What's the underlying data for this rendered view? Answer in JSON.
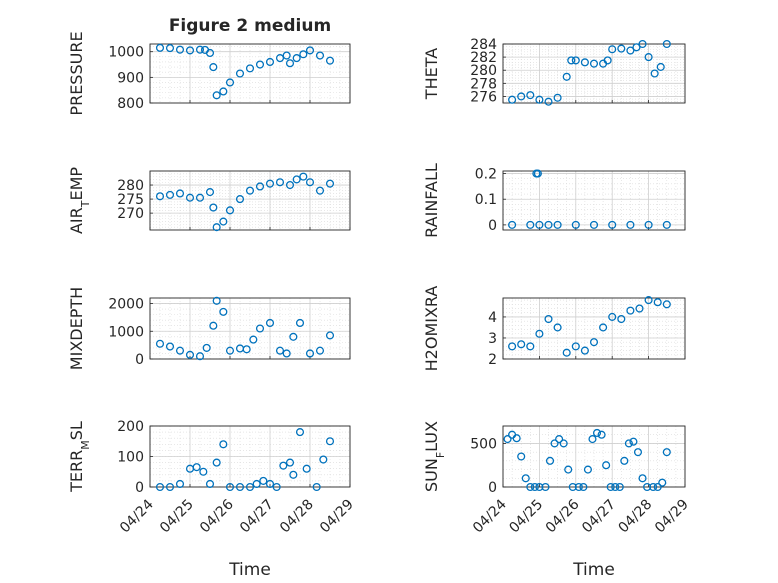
{
  "figure_title": "Figure 2 medium",
  "xlabel": "Time",
  "x_tick_labels": [
    "04/24",
    "04/25",
    "04/26",
    "04/27",
    "04/28",
    "04/29"
  ],
  "marker_color": "#0072BD",
  "chart_data": [
    {
      "type": "scatter",
      "id": "pressure",
      "title": "Figure 2 medium",
      "ylabel": "PRESSURE",
      "ylabel_sub": null,
      "ylabel_tail": null,
      "xlim": [
        "2023-04-24",
        "2023-04-29"
      ],
      "ylim": [
        800,
        1030
      ],
      "yticks": [
        800,
        900,
        1000
      ],
      "grid": true,
      "minor_grid": true,
      "x": [
        "2023-04-24T06:00",
        "2023-04-24T12:00",
        "2023-04-24T18:00",
        "2023-04-25T00:00",
        "2023-04-25T06:00",
        "2023-04-25T09:00",
        "2023-04-25T12:00",
        "2023-04-25T14:00",
        "2023-04-25T16:00",
        "2023-04-25T20:00",
        "2023-04-26T00:00",
        "2023-04-26T06:00",
        "2023-04-26T12:00",
        "2023-04-26T18:00",
        "2023-04-27T00:00",
        "2023-04-27T06:00",
        "2023-04-27T10:00",
        "2023-04-27T12:00",
        "2023-04-27T16:00",
        "2023-04-27T20:00",
        "2023-04-28T00:00",
        "2023-04-28T06:00",
        "2023-04-28T12:00"
      ],
      "values": [
        1015,
        1014,
        1008,
        1005,
        1008,
        1007,
        995,
        940,
        830,
        845,
        880,
        915,
        935,
        950,
        960,
        975,
        985,
        955,
        975,
        990,
        1005,
        985,
        965
      ]
    },
    {
      "type": "scatter",
      "id": "theta",
      "ylabel": "THETA",
      "ylabel_sub": null,
      "ylabel_tail": null,
      "xlim": [
        "2023-04-24",
        "2023-04-29"
      ],
      "ylim": [
        275,
        284
      ],
      "yticks": [
        276,
        278,
        280,
        282,
        284
      ],
      "grid": true,
      "minor_grid": true,
      "x": [
        "2023-04-24T06:00",
        "2023-04-24T12:00",
        "2023-04-24T18:00",
        "2023-04-25T00:00",
        "2023-04-25T06:00",
        "2023-04-25T12:00",
        "2023-04-25T18:00",
        "2023-04-25T21:00",
        "2023-04-26T00:00",
        "2023-04-26T06:00",
        "2023-04-26T12:00",
        "2023-04-26T18:00",
        "2023-04-26T21:00",
        "2023-04-27T00:00",
        "2023-04-27T06:00",
        "2023-04-27T12:00",
        "2023-04-27T16:00",
        "2023-04-27T20:00",
        "2023-04-28T00:00",
        "2023-04-28T04:00",
        "2023-04-28T08:00",
        "2023-04-28T12:00"
      ],
      "values": [
        275.5,
        276,
        276.2,
        275.5,
        275.2,
        275.8,
        279,
        281.5,
        281.5,
        281.2,
        281,
        281,
        281.5,
        283.2,
        283.3,
        283,
        283.5,
        284,
        282,
        279.5,
        280.5,
        284
      ]
    },
    {
      "type": "scatter",
      "id": "air_temp",
      "ylabel": "AIR",
      "ylabel_sub": "T",
      "ylabel_tail": "EMP",
      "xlim": [
        "2023-04-24",
        "2023-04-29"
      ],
      "ylim": [
        264,
        285
      ],
      "yticks": [
        270,
        275,
        280
      ],
      "grid": true,
      "minor_grid": true,
      "x": [
        "2023-04-24T06:00",
        "2023-04-24T12:00",
        "2023-04-24T18:00",
        "2023-04-25T00:00",
        "2023-04-25T06:00",
        "2023-04-25T12:00",
        "2023-04-25T14:00",
        "2023-04-25T16:00",
        "2023-04-25T20:00",
        "2023-04-26T00:00",
        "2023-04-26T06:00",
        "2023-04-26T12:00",
        "2023-04-26T18:00",
        "2023-04-27T00:00",
        "2023-04-27T06:00",
        "2023-04-27T12:00",
        "2023-04-27T16:00",
        "2023-04-27T20:00",
        "2023-04-28T00:00",
        "2023-04-28T06:00",
        "2023-04-28T12:00"
      ],
      "values": [
        276,
        276.5,
        277,
        275.5,
        275.5,
        277.5,
        272,
        265,
        267,
        271,
        275,
        278,
        279.5,
        280.5,
        281,
        280,
        282,
        283,
        281,
        278,
        280.5
      ]
    },
    {
      "type": "scatter",
      "id": "rainfall",
      "ylabel": "RAINFALL",
      "ylabel_sub": null,
      "ylabel_tail": null,
      "xlim": [
        "2023-04-24",
        "2023-04-29"
      ],
      "ylim": [
        -0.02,
        0.21
      ],
      "yticks": [
        0,
        0.1,
        0.2
      ],
      "grid": true,
      "minor_grid": true,
      "x": [
        "2023-04-24T06:00",
        "2023-04-24T18:00",
        "2023-04-25T00:00",
        "2023-04-25T06:00",
        "2023-04-25T12:00",
        "2023-04-26T00:00",
        "2023-04-26T12:00",
        "2023-04-27T00:00",
        "2023-04-27T12:00",
        "2023-04-28T00:00",
        "2023-04-28T12:00",
        "2023-04-24T22:00",
        "2023-04-24T23:00"
      ],
      "values": [
        0,
        0,
        0,
        0,
        0,
        0,
        0,
        0,
        0,
        0,
        0,
        0.2,
        0.2
      ]
    },
    {
      "type": "scatter",
      "id": "mixdepth",
      "ylabel": "MIXDEPTH",
      "ylabel_sub": null,
      "ylabel_tail": null,
      "xlim": [
        "2023-04-24",
        "2023-04-29"
      ],
      "ylim": [
        0,
        2200
      ],
      "yticks": [
        0,
        1000,
        2000
      ],
      "grid": true,
      "minor_grid": true,
      "x": [
        "2023-04-24T06:00",
        "2023-04-24T12:00",
        "2023-04-24T18:00",
        "2023-04-25T00:00",
        "2023-04-25T06:00",
        "2023-04-25T10:00",
        "2023-04-25T14:00",
        "2023-04-25T16:00",
        "2023-04-25T20:00",
        "2023-04-26T00:00",
        "2023-04-26T06:00",
        "2023-04-26T10:00",
        "2023-04-26T14:00",
        "2023-04-26T18:00",
        "2023-04-27T00:00",
        "2023-04-27T06:00",
        "2023-04-27T10:00",
        "2023-04-27T14:00",
        "2023-04-27T18:00",
        "2023-04-28T00:00",
        "2023-04-28T06:00",
        "2023-04-28T12:00"
      ],
      "values": [
        550,
        450,
        300,
        150,
        100,
        400,
        1200,
        2100,
        1700,
        300,
        380,
        350,
        700,
        1100,
        1300,
        300,
        200,
        800,
        1300,
        200,
        300,
        850
      ]
    },
    {
      "type": "scatter",
      "id": "h2omixra",
      "ylabel": "H2OMIXRA",
      "ylabel_sub": null,
      "ylabel_tail": null,
      "xlim": [
        "2023-04-24",
        "2023-04-29"
      ],
      "ylim": [
        2,
        4.9
      ],
      "yticks": [
        2,
        3,
        4
      ],
      "grid": true,
      "minor_grid": true,
      "x": [
        "2023-04-24T06:00",
        "2023-04-24T12:00",
        "2023-04-24T18:00",
        "2023-04-25T00:00",
        "2023-04-25T06:00",
        "2023-04-25T12:00",
        "2023-04-25T18:00",
        "2023-04-26T00:00",
        "2023-04-26T06:00",
        "2023-04-26T12:00",
        "2023-04-26T18:00",
        "2023-04-27T00:00",
        "2023-04-27T06:00",
        "2023-04-27T12:00",
        "2023-04-27T18:00",
        "2023-04-28T00:00",
        "2023-04-28T06:00",
        "2023-04-28T12:00"
      ],
      "values": [
        2.6,
        2.7,
        2.6,
        3.2,
        3.9,
        3.5,
        2.3,
        2.6,
        2.4,
        2.8,
        3.5,
        4.0,
        3.9,
        4.3,
        4.4,
        4.8,
        4.7,
        4.6
      ]
    },
    {
      "type": "scatter",
      "id": "terr_msl",
      "ylabel": "TERR",
      "ylabel_sub": "M",
      "ylabel_tail": "SL",
      "xlim": [
        "2023-04-24",
        "2023-04-29"
      ],
      "ylim": [
        0,
        200
      ],
      "yticks": [
        0,
        100,
        200
      ],
      "grid": true,
      "minor_grid": true,
      "x": [
        "2023-04-24T06:00",
        "2023-04-24T12:00",
        "2023-04-24T18:00",
        "2023-04-25T00:00",
        "2023-04-25T04:00",
        "2023-04-25T08:00",
        "2023-04-25T12:00",
        "2023-04-25T16:00",
        "2023-04-25T20:00",
        "2023-04-26T00:00",
        "2023-04-26T06:00",
        "2023-04-26T12:00",
        "2023-04-26T16:00",
        "2023-04-26T20:00",
        "2023-04-27T00:00",
        "2023-04-27T04:00",
        "2023-04-27T08:00",
        "2023-04-27T12:00",
        "2023-04-27T14:00",
        "2023-04-27T18:00",
        "2023-04-27T22:00",
        "2023-04-28T04:00",
        "2023-04-28T08:00",
        "2023-04-28T12:00"
      ],
      "values": [
        0,
        0,
        10,
        60,
        65,
        50,
        10,
        80,
        140,
        0,
        0,
        0,
        10,
        20,
        10,
        0,
        70,
        80,
        40,
        180,
        60,
        0,
        90,
        150
      ]
    },
    {
      "type": "scatter",
      "id": "sun_flux",
      "ylabel": "SUN",
      "ylabel_sub": "F",
      "ylabel_tail": "LUX",
      "xlim": [
        "2023-04-24",
        "2023-04-29"
      ],
      "ylim": [
        0,
        700
      ],
      "yticks": [
        0,
        500
      ],
      "grid": true,
      "minor_grid": true,
      "x": [
        "2023-04-24T03:00",
        "2023-04-24T06:00",
        "2023-04-24T09:00",
        "2023-04-24T12:00",
        "2023-04-24T15:00",
        "2023-04-24T18:00",
        "2023-04-24T21:00",
        "2023-04-25T00:00",
        "2023-04-25T04:00",
        "2023-04-25T07:00",
        "2023-04-25T10:00",
        "2023-04-25T13:00",
        "2023-04-25T16:00",
        "2023-04-25T19:00",
        "2023-04-25T22:00",
        "2023-04-26T02:00",
        "2023-04-26T05:00",
        "2023-04-26T08:00",
        "2023-04-26T11:00",
        "2023-04-26T14:00",
        "2023-04-26T17:00",
        "2023-04-26T20:00",
        "2023-04-26T23:00",
        "2023-04-27T02:00",
        "2023-04-27T05:00",
        "2023-04-27T08:00",
        "2023-04-27T11:00",
        "2023-04-27T14:00",
        "2023-04-27T17:00",
        "2023-04-27T20:00",
        "2023-04-27T23:00",
        "2023-04-28T03:00",
        "2023-04-28T06:00",
        "2023-04-28T09:00",
        "2023-04-28T12:00"
      ],
      "values": [
        550,
        600,
        560,
        350,
        100,
        0,
        0,
        0,
        0,
        300,
        500,
        550,
        500,
        200,
        0,
        0,
        0,
        200,
        550,
        620,
        600,
        250,
        0,
        0,
        0,
        300,
        500,
        520,
        400,
        100,
        0,
        0,
        0,
        50,
        400
      ]
    }
  ]
}
